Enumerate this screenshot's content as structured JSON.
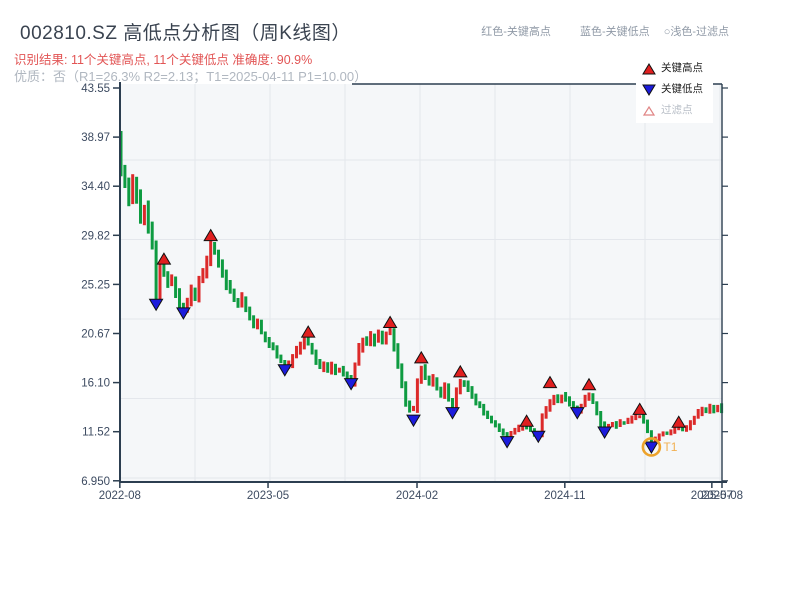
{
  "header": {
    "title": "002810.SZ 高低点分析图（周K线图）",
    "hint_red": "红色-关键高点",
    "hint_blue": "蓝色-关键低点",
    "hint_filter": "○浅色-过滤点",
    "result_line": "识别结果: 11个关键高点, 11个关键低点  准确度: 90.9%",
    "quality_line": "优质：否（R1=26.3%  R2=2.13；T1=2025-04-11 P1=10.00）"
  },
  "legend": {
    "high_label": "关键高点",
    "low_label": "关键低点",
    "filter_label": "过滤点"
  },
  "chart_data": {
    "type": "candlestick",
    "timeframe": "weekly",
    "title": "002810.SZ 高低点分析图（周K线图）",
    "grid": true,
    "y_axis": {
      "tick_labels": [
        "43.55",
        "38.97",
        "34.40",
        "29.82",
        "25.25",
        "20.67",
        "16.10",
        "11.52",
        "6.950"
      ],
      "range": [
        6.95,
        43.55
      ]
    },
    "x_axis": {
      "ticks": [
        {
          "label": "2022-08",
          "week": -0.3
        },
        {
          "label": "2023-05",
          "week": 37.7
        },
        {
          "label": "2024-02",
          "week": 75.9
        },
        {
          "label": "2024-11",
          "week": 113.8
        },
        {
          "label": "2025-07",
          "week": 151.5
        },
        {
          "label": "2025-08",
          "week": 154.1
        }
      ]
    },
    "open_first": 39.4,
    "weekly_close": [
      36.2,
      34.8,
      33.0,
      34.9,
      33.3,
      31.6,
      32.4,
      30.4,
      28.9,
      24.0,
      26.8,
      26.3,
      25.2,
      25.8,
      24.3,
      23.3,
      23.0,
      23.8,
      24.6,
      24.2,
      25.6,
      26.4,
      27.4,
      29.0,
      28.2,
      27.0,
      26.3,
      25.3,
      24.6,
      23.8,
      23.2,
      24.0,
      22.8,
      22.1,
      21.4,
      21.8,
      20.7,
      20.2,
      19.7,
      19.2,
      18.6,
      18.1,
      17.6,
      17.9,
      18.5,
      19.1,
      19.6,
      19.9,
      19.7,
      19.0,
      18.2,
      17.5,
      17.8,
      17.3,
      17.7,
      17.1,
      17.4,
      16.9,
      16.6,
      16.1,
      17.8,
      19.3,
      20.2,
      19.7,
      20.4,
      19.9,
      20.6,
      20.1,
      20.7,
      20.9,
      19.4,
      17.8,
      15.9,
      14.2,
      13.5,
      13.6,
      16.4,
      17.4,
      16.6,
      16.0,
      16.5,
      15.6,
      14.9,
      15.8,
      14.6,
      13.9,
      15.3,
      16.2,
      15.9,
      15.4,
      14.8,
      14.3,
      13.8,
      13.3,
      12.8,
      12.4,
      12.0,
      11.7,
      11.4,
      11.0,
      11.4,
      11.7,
      11.9,
      12.0,
      11.9,
      11.6,
      11.3,
      11.1,
      12.9,
      13.6,
      14.3,
      14.8,
      14.4,
      14.9,
      14.5,
      14.1,
      13.8,
      13.4,
      14.0,
      14.7,
      14.9,
      14.2,
      13.2,
      12.3,
      11.8,
      12.0,
      12.2,
      12.1,
      12.4,
      12.3,
      12.6,
      12.8,
      12.9,
      13.0,
      12.5,
      11.5,
      10.5,
      10.9,
      11.2,
      11.4,
      11.3,
      11.6,
      11.8,
      12.0,
      11.7,
      11.9,
      12.3,
      12.8,
      13.3,
      13.7,
      13.4,
      13.8,
      13.5,
      13.9,
      13.6
    ],
    "key_highs": [
      {
        "week": 11,
        "price": 27.6
      },
      {
        "week": 23,
        "price": 29.8
      },
      {
        "week": 48,
        "price": 20.8
      },
      {
        "week": 69,
        "price": 21.7
      },
      {
        "week": 77,
        "price": 18.4
      },
      {
        "week": 87,
        "price": 17.1
      },
      {
        "week": 104,
        "price": 12.5
      },
      {
        "week": 110,
        "price": 16.1
      },
      {
        "week": 120,
        "price": 15.9
      },
      {
        "week": 133,
        "price": 13.6
      },
      {
        "week": 143,
        "price": 12.4
      }
    ],
    "key_lows": [
      {
        "week": 9,
        "price": 23.4
      },
      {
        "week": 16,
        "price": 22.6
      },
      {
        "week": 42,
        "price": 17.3
      },
      {
        "week": 59,
        "price": 16.0
      },
      {
        "week": 75,
        "price": 12.6
      },
      {
        "week": 85,
        "price": 13.3
      },
      {
        "week": 99,
        "price": 10.6
      },
      {
        "week": 107,
        "price": 11.1
      },
      {
        "week": 117,
        "price": 13.3
      },
      {
        "week": 124,
        "price": 11.5
      },
      {
        "week": 136,
        "price": 10.1
      }
    ],
    "annotation": {
      "label": "T1",
      "week": 136,
      "price": 10.1
    },
    "colors": {
      "up_candle": "#dc2a2a",
      "down_candle": "#0e9b41",
      "high_marker": "#e01f1f",
      "low_marker": "#1c1cdc",
      "marker_edge": "#101010",
      "annotation_ring": "#eda32b",
      "annotation_text": "#f2b052",
      "plot_bg": "#f5f7f9",
      "grid": "#e4e7ec",
      "spine": "#2c3e50",
      "axis_text": "#3d4b61"
    }
  }
}
